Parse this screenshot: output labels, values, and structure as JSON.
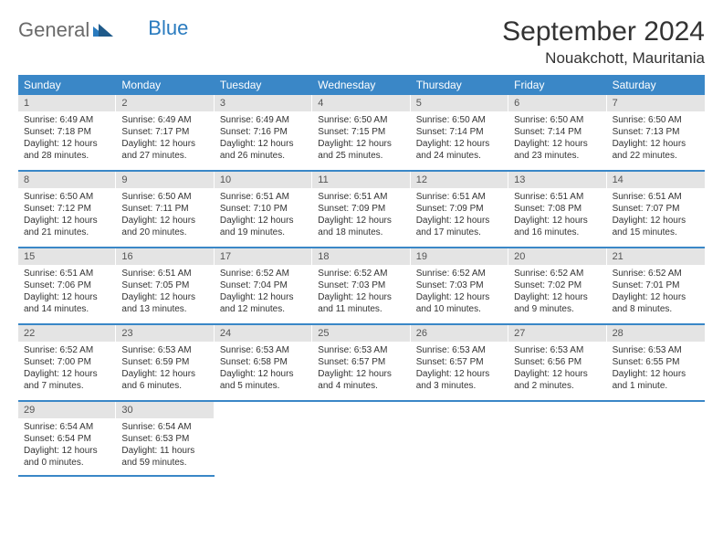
{
  "brand": {
    "part1": "General",
    "part2": "Blue"
  },
  "title": "September 2024",
  "location": "Nouakchott, Mauritania",
  "colors": {
    "header_bg": "#3a87c7",
    "header_text": "#ffffff",
    "daynum_bg": "#e4e4e4",
    "week_border": "#3a87c7",
    "text": "#333333",
    "logo_gray": "#6a6a6a",
    "logo_blue": "#2a7bbf"
  },
  "weekdays": [
    "Sunday",
    "Monday",
    "Tuesday",
    "Wednesday",
    "Thursday",
    "Friday",
    "Saturday"
  ],
  "weeks": [
    [
      {
        "n": "1",
        "sunrise": "Sunrise: 6:49 AM",
        "sunset": "Sunset: 7:18 PM",
        "daylight": "Daylight: 12 hours and 28 minutes."
      },
      {
        "n": "2",
        "sunrise": "Sunrise: 6:49 AM",
        "sunset": "Sunset: 7:17 PM",
        "daylight": "Daylight: 12 hours and 27 minutes."
      },
      {
        "n": "3",
        "sunrise": "Sunrise: 6:49 AM",
        "sunset": "Sunset: 7:16 PM",
        "daylight": "Daylight: 12 hours and 26 minutes."
      },
      {
        "n": "4",
        "sunrise": "Sunrise: 6:50 AM",
        "sunset": "Sunset: 7:15 PM",
        "daylight": "Daylight: 12 hours and 25 minutes."
      },
      {
        "n": "5",
        "sunrise": "Sunrise: 6:50 AM",
        "sunset": "Sunset: 7:14 PM",
        "daylight": "Daylight: 12 hours and 24 minutes."
      },
      {
        "n": "6",
        "sunrise": "Sunrise: 6:50 AM",
        "sunset": "Sunset: 7:14 PM",
        "daylight": "Daylight: 12 hours and 23 minutes."
      },
      {
        "n": "7",
        "sunrise": "Sunrise: 6:50 AM",
        "sunset": "Sunset: 7:13 PM",
        "daylight": "Daylight: 12 hours and 22 minutes."
      }
    ],
    [
      {
        "n": "8",
        "sunrise": "Sunrise: 6:50 AM",
        "sunset": "Sunset: 7:12 PM",
        "daylight": "Daylight: 12 hours and 21 minutes."
      },
      {
        "n": "9",
        "sunrise": "Sunrise: 6:50 AM",
        "sunset": "Sunset: 7:11 PM",
        "daylight": "Daylight: 12 hours and 20 minutes."
      },
      {
        "n": "10",
        "sunrise": "Sunrise: 6:51 AM",
        "sunset": "Sunset: 7:10 PM",
        "daylight": "Daylight: 12 hours and 19 minutes."
      },
      {
        "n": "11",
        "sunrise": "Sunrise: 6:51 AM",
        "sunset": "Sunset: 7:09 PM",
        "daylight": "Daylight: 12 hours and 18 minutes."
      },
      {
        "n": "12",
        "sunrise": "Sunrise: 6:51 AM",
        "sunset": "Sunset: 7:09 PM",
        "daylight": "Daylight: 12 hours and 17 minutes."
      },
      {
        "n": "13",
        "sunrise": "Sunrise: 6:51 AM",
        "sunset": "Sunset: 7:08 PM",
        "daylight": "Daylight: 12 hours and 16 minutes."
      },
      {
        "n": "14",
        "sunrise": "Sunrise: 6:51 AM",
        "sunset": "Sunset: 7:07 PM",
        "daylight": "Daylight: 12 hours and 15 minutes."
      }
    ],
    [
      {
        "n": "15",
        "sunrise": "Sunrise: 6:51 AM",
        "sunset": "Sunset: 7:06 PM",
        "daylight": "Daylight: 12 hours and 14 minutes."
      },
      {
        "n": "16",
        "sunrise": "Sunrise: 6:51 AM",
        "sunset": "Sunset: 7:05 PM",
        "daylight": "Daylight: 12 hours and 13 minutes."
      },
      {
        "n": "17",
        "sunrise": "Sunrise: 6:52 AM",
        "sunset": "Sunset: 7:04 PM",
        "daylight": "Daylight: 12 hours and 12 minutes."
      },
      {
        "n": "18",
        "sunrise": "Sunrise: 6:52 AM",
        "sunset": "Sunset: 7:03 PM",
        "daylight": "Daylight: 12 hours and 11 minutes."
      },
      {
        "n": "19",
        "sunrise": "Sunrise: 6:52 AM",
        "sunset": "Sunset: 7:03 PM",
        "daylight": "Daylight: 12 hours and 10 minutes."
      },
      {
        "n": "20",
        "sunrise": "Sunrise: 6:52 AM",
        "sunset": "Sunset: 7:02 PM",
        "daylight": "Daylight: 12 hours and 9 minutes."
      },
      {
        "n": "21",
        "sunrise": "Sunrise: 6:52 AM",
        "sunset": "Sunset: 7:01 PM",
        "daylight": "Daylight: 12 hours and 8 minutes."
      }
    ],
    [
      {
        "n": "22",
        "sunrise": "Sunrise: 6:52 AM",
        "sunset": "Sunset: 7:00 PM",
        "daylight": "Daylight: 12 hours and 7 minutes."
      },
      {
        "n": "23",
        "sunrise": "Sunrise: 6:53 AM",
        "sunset": "Sunset: 6:59 PM",
        "daylight": "Daylight: 12 hours and 6 minutes."
      },
      {
        "n": "24",
        "sunrise": "Sunrise: 6:53 AM",
        "sunset": "Sunset: 6:58 PM",
        "daylight": "Daylight: 12 hours and 5 minutes."
      },
      {
        "n": "25",
        "sunrise": "Sunrise: 6:53 AM",
        "sunset": "Sunset: 6:57 PM",
        "daylight": "Daylight: 12 hours and 4 minutes."
      },
      {
        "n": "26",
        "sunrise": "Sunrise: 6:53 AM",
        "sunset": "Sunset: 6:57 PM",
        "daylight": "Daylight: 12 hours and 3 minutes."
      },
      {
        "n": "27",
        "sunrise": "Sunrise: 6:53 AM",
        "sunset": "Sunset: 6:56 PM",
        "daylight": "Daylight: 12 hours and 2 minutes."
      },
      {
        "n": "28",
        "sunrise": "Sunrise: 6:53 AM",
        "sunset": "Sunset: 6:55 PM",
        "daylight": "Daylight: 12 hours and 1 minute."
      }
    ],
    [
      {
        "n": "29",
        "sunrise": "Sunrise: 6:54 AM",
        "sunset": "Sunset: 6:54 PM",
        "daylight": "Daylight: 12 hours and 0 minutes."
      },
      {
        "n": "30",
        "sunrise": "Sunrise: 6:54 AM",
        "sunset": "Sunset: 6:53 PM",
        "daylight": "Daylight: 11 hours and 59 minutes."
      },
      null,
      null,
      null,
      null,
      null
    ]
  ]
}
